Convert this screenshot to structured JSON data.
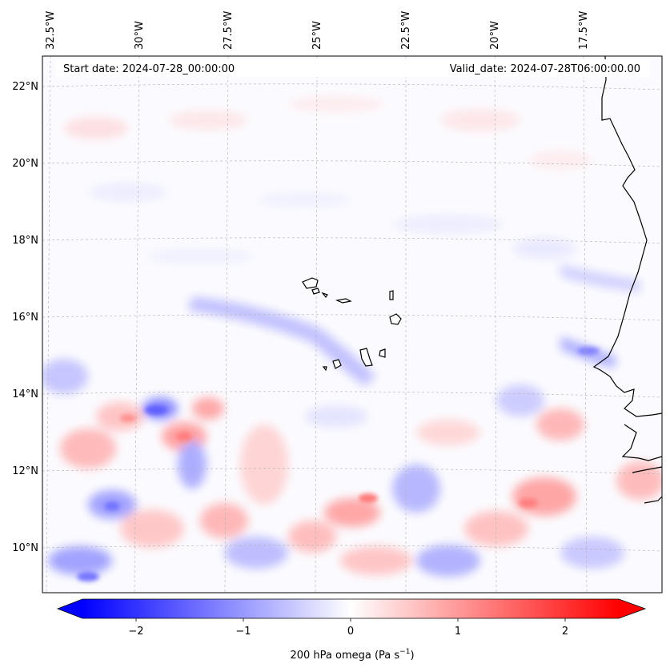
{
  "header": {
    "start_date": "Start date: 2024-07-28_00:00:00",
    "valid_date": "Valid_date: 2024-07-28T06:00:00.00"
  },
  "map": {
    "longitude_labels": [
      "32.5°W",
      "30°W",
      "27.5°W",
      "25°W",
      "22.5°W",
      "20°W",
      "17.5°W"
    ],
    "latitude_labels": [
      "22°N",
      "20°N",
      "18°N",
      "16°N",
      "14°N",
      "12°N",
      "10°N"
    ],
    "field": "200 hPa omega",
    "colormap": "bwr",
    "colors": {
      "negative": "#0000ff",
      "zero": "#ffffff",
      "positive": "#ff0000",
      "coastline": "#000000",
      "gridline": "#b0b0b0"
    }
  },
  "colorbar": {
    "ticks": [
      "−2",
      "−1",
      "0",
      "1",
      "2"
    ],
    "tick_values": [
      -2,
      -1,
      0,
      1,
      2
    ],
    "range": [
      -2.5,
      2.5
    ],
    "label_text": "200 hPa omega (Pa s",
    "label_exp": "−1",
    "label_close": ")"
  }
}
